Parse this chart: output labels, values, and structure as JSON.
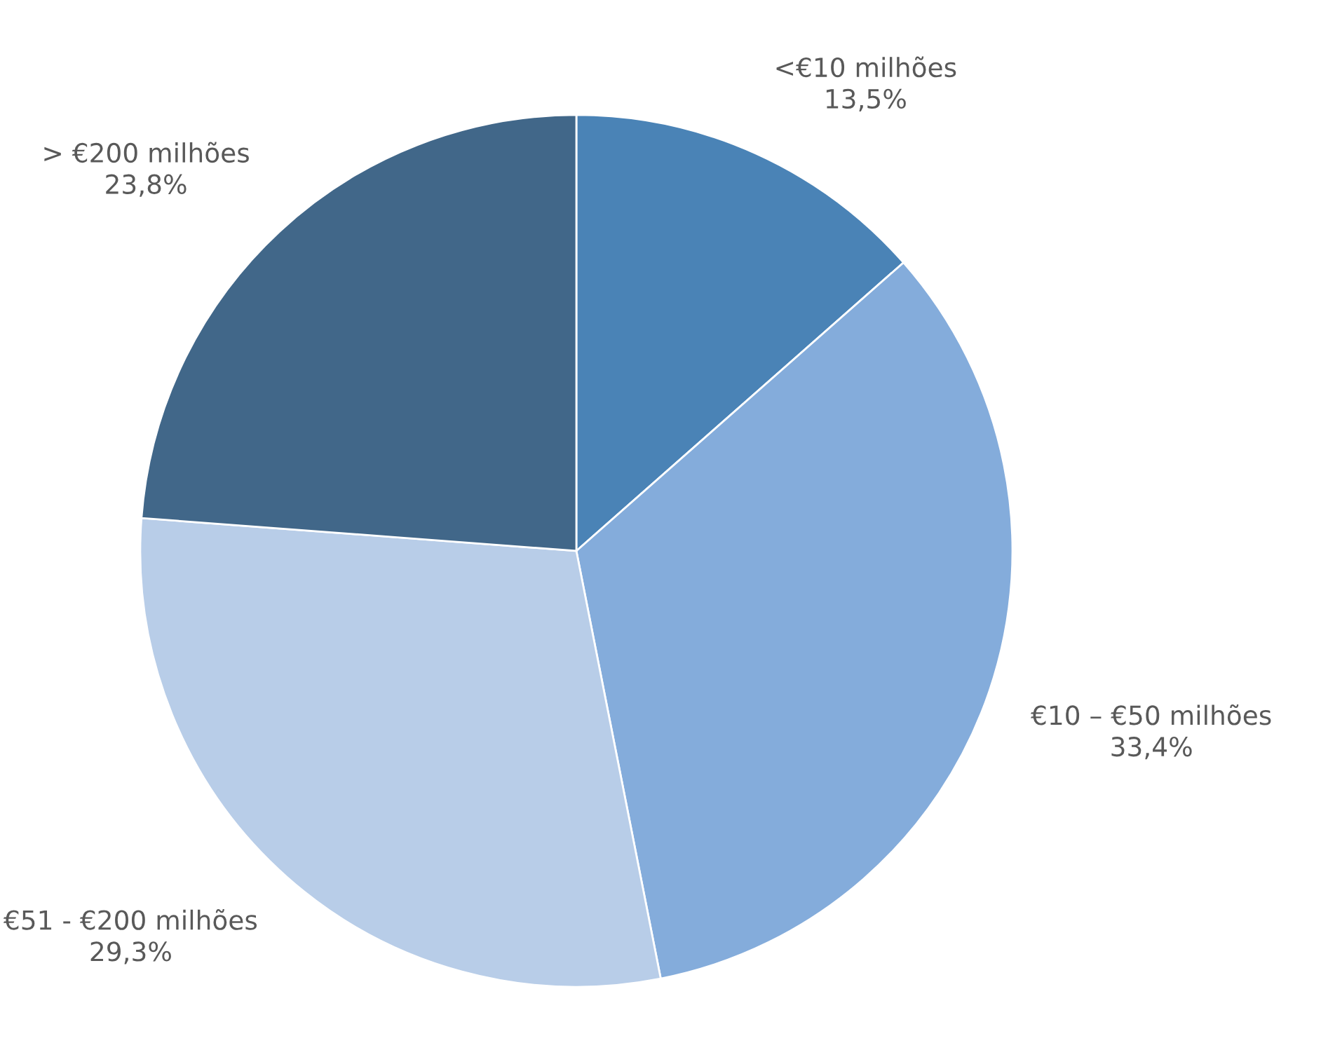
{
  "chart_data": {
    "type": "pie",
    "categories": [
      "<€10 milhões",
      "€10 – €50 milhões",
      "€51 - €200 milhões",
      "> €200 milhões"
    ],
    "values": [
      13.5,
      33.4,
      29.3,
      23.8
    ],
    "value_labels": [
      "13,5%",
      "33,4%",
      "29,3%",
      "23,8%"
    ],
    "colors": [
      "#4a83b6",
      "#84acdb",
      "#b8cde8",
      "#416789"
    ],
    "legend": false
  }
}
